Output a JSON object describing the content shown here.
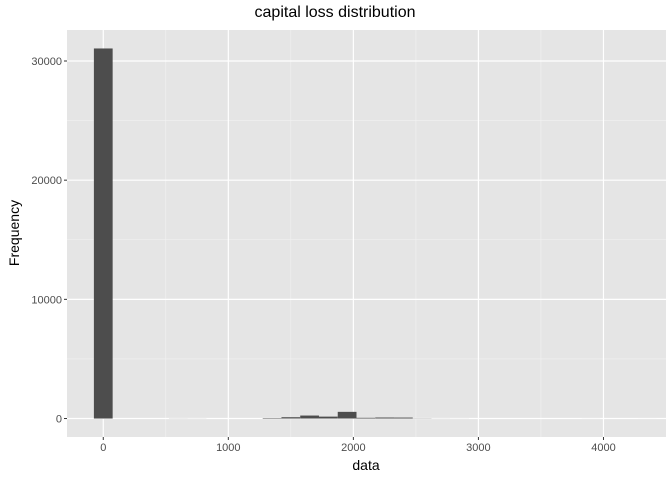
{
  "chart_data": {
    "type": "bar",
    "title": "capital loss distribution",
    "xlabel": "data",
    "ylabel": "Frequency",
    "xlim": [
      -290,
      4500
    ],
    "ylim": [
      -1550,
      32600
    ],
    "x_ticks": [
      0,
      1000,
      2000,
      3000,
      4000
    ],
    "y_ticks": [
      0,
      10000,
      20000,
      30000
    ],
    "x_tick_labels": [
      "0",
      "1000",
      "2000",
      "3000",
      "4000"
    ],
    "y_tick_labels": [
      "0",
      "10000",
      "20000",
      "30000"
    ],
    "grid": true,
    "bar_color": "#4d4d4d",
    "panel_background": "#e5e5e5",
    "bins": [
      {
        "x": 0,
        "count": 31050
      },
      {
        "x": 150,
        "count": 0
      },
      {
        "x": 300,
        "count": 0
      },
      {
        "x": 450,
        "count": 0
      },
      {
        "x": 600,
        "count": 8
      },
      {
        "x": 750,
        "count": 5
      },
      {
        "x": 900,
        "count": 0
      },
      {
        "x": 1050,
        "count": 0
      },
      {
        "x": 1200,
        "count": 0
      },
      {
        "x": 1350,
        "count": 40
      },
      {
        "x": 1500,
        "count": 110
      },
      {
        "x": 1650,
        "count": 250
      },
      {
        "x": 1800,
        "count": 160
      },
      {
        "x": 1950,
        "count": 560
      },
      {
        "x": 2100,
        "count": 60
      },
      {
        "x": 2250,
        "count": 85
      },
      {
        "x": 2400,
        "count": 80
      },
      {
        "x": 2550,
        "count": 15
      },
      {
        "x": 2700,
        "count": 5
      },
      {
        "x": 2850,
        "count": 3
      },
      {
        "x": 3000,
        "count": 0
      },
      {
        "x": 3150,
        "count": 0
      },
      {
        "x": 3300,
        "count": 0
      },
      {
        "x": 3450,
        "count": 0
      },
      {
        "x": 3600,
        "count": 0
      },
      {
        "x": 3750,
        "count": 0
      },
      {
        "x": 3900,
        "count": 2
      },
      {
        "x": 4050,
        "count": 0
      },
      {
        "x": 4200,
        "count": 0
      },
      {
        "x": 4350,
        "count": 1
      }
    ],
    "bin_width": 150
  }
}
